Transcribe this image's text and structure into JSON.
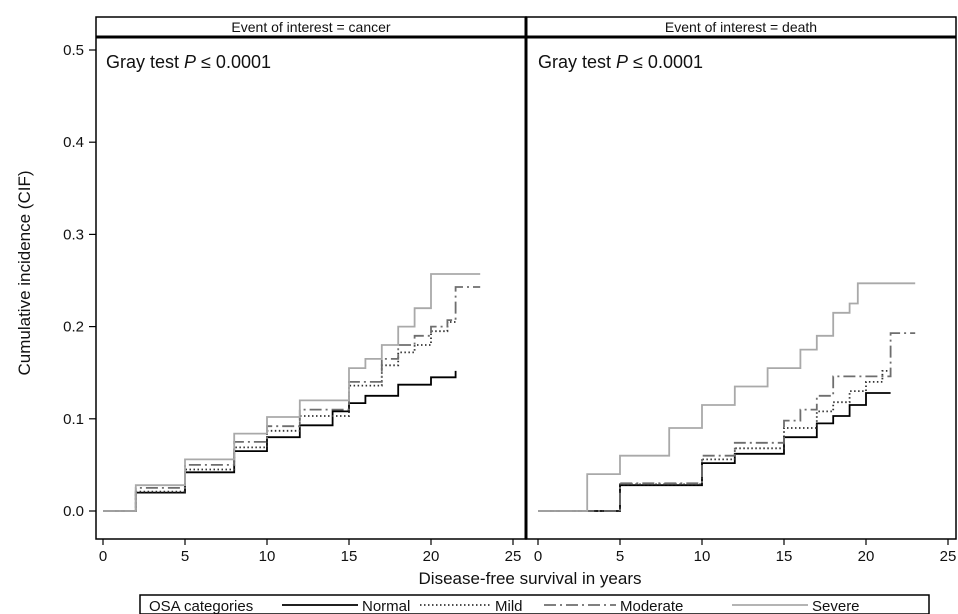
{
  "chart_data": {
    "type": "line",
    "ylabel": "Cumulative incidence (CIF)",
    "xlabel": "Disease-free survival in years",
    "xlim": [
      0,
      25
    ],
    "ylim": [
      0,
      0.5
    ],
    "x_ticks": [
      0,
      5,
      10,
      15,
      20,
      25
    ],
    "y_ticks": [
      0.0,
      0.1,
      0.2,
      0.3,
      0.4,
      0.5
    ],
    "grid": false,
    "legend": {
      "position": "bottom",
      "title": "OSA categories",
      "entries": [
        "Normal",
        "Mild",
        "Moderate",
        "Severe"
      ]
    },
    "series_styles": [
      {
        "name": "Normal",
        "color": "#000000",
        "dash": "solid"
      },
      {
        "name": "Mild",
        "color": "#333333",
        "dash": "dotted"
      },
      {
        "name": "Moderate",
        "color": "#6e6e6e",
        "dash": "dashdot"
      },
      {
        "name": "Severe",
        "color": "#a9a9a9",
        "dash": "solid"
      }
    ],
    "panels": [
      {
        "strip_label": "Event of interest = cancer",
        "annotation": {
          "prefix": "Gray test ",
          "italic": "P",
          "suffix": " ≤ 0.0001"
        },
        "series": [
          {
            "name": "Normal",
            "x": [
              0,
              2,
              5,
              8,
              10,
              12,
              14,
              15,
              16,
              18,
              20,
              21.5
            ],
            "y": [
              0,
              0.02,
              0.042,
              0.065,
              0.08,
              0.093,
              0.108,
              0.117,
              0.125,
              0.137,
              0.145,
              0.152
            ]
          },
          {
            "name": "Mild",
            "x": [
              0,
              2,
              5,
              8,
              10,
              12,
              15,
              17,
              18,
              19,
              20,
              21,
              21.5
            ],
            "y": [
              0,
              0.021,
              0.045,
              0.069,
              0.087,
              0.103,
              0.136,
              0.158,
              0.172,
              0.18,
              0.195,
              0.205,
              0.208
            ]
          },
          {
            "name": "Moderate",
            "x": [
              0,
              2,
              5,
              8,
              10,
              12,
              15,
              17,
              18,
              19,
              20,
              21,
              21.5,
              23
            ],
            "y": [
              0,
              0.025,
              0.05,
              0.075,
              0.092,
              0.11,
              0.14,
              0.165,
              0.18,
              0.19,
              0.2,
              0.207,
              0.243,
              0.243
            ]
          },
          {
            "name": "Severe",
            "x": [
              0,
              2,
              5,
              8,
              10,
              12,
              15,
              16,
              17,
              18,
              19,
              20,
              23
            ],
            "y": [
              0,
              0.028,
              0.056,
              0.084,
              0.102,
              0.12,
              0.155,
              0.165,
              0.18,
              0.2,
              0.22,
              0.257,
              0.257
            ]
          }
        ]
      },
      {
        "strip_label": "Event of interest = death",
        "annotation": {
          "prefix": "Gray test ",
          "italic": "P",
          "suffix": " ≤ 0.0001"
        },
        "series": [
          {
            "name": "Normal",
            "x": [
              0,
              5,
              10,
              12,
              15,
              17,
              18,
              19,
              20,
              21.5
            ],
            "y": [
              0,
              0.028,
              0.052,
              0.062,
              0.08,
              0.095,
              0.103,
              0.115,
              0.128,
              0.128
            ]
          },
          {
            "name": "Mild",
            "x": [
              0,
              5,
              10,
              12,
              15,
              17,
              18,
              19,
              20,
              21,
              21.5
            ],
            "y": [
              0,
              0.029,
              0.056,
              0.068,
              0.09,
              0.108,
              0.118,
              0.13,
              0.14,
              0.152,
              0.152
            ]
          },
          {
            "name": "Moderate",
            "x": [
              0,
              5,
              10,
              12,
              15,
              16,
              17,
              18,
              19,
              20,
              21,
              21.5,
              23
            ],
            "y": [
              0,
              0.03,
              0.06,
              0.074,
              0.098,
              0.11,
              0.125,
              0.146,
              0.146,
              0.146,
              0.146,
              0.193,
              0.193
            ]
          },
          {
            "name": "Severe",
            "x": [
              0,
              3,
              5,
              8,
              10,
              12,
              14,
              16,
              17,
              18,
              19,
              19.5,
              23
            ],
            "y": [
              0,
              0.04,
              0.06,
              0.09,
              0.115,
              0.135,
              0.155,
              0.175,
              0.19,
              0.215,
              0.225,
              0.247,
              0.247
            ]
          }
        ]
      }
    ]
  }
}
